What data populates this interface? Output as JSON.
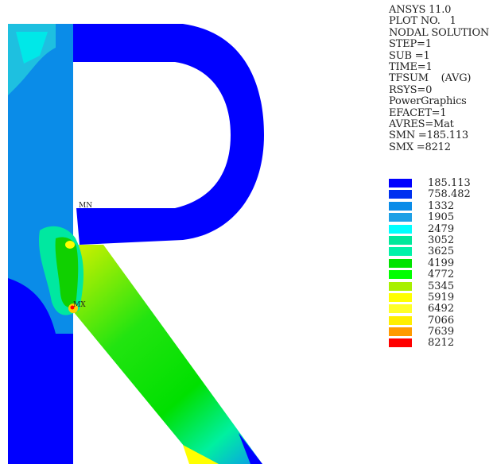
{
  "info_lines": [
    "ANSYS 11.0",
    "PLOT NO.   1",
    "NODAL SOLUTION",
    "STEP=1",
    "SUB =1",
    "TIME=1",
    "TFSUM    (AVG)",
    "RSYS=0",
    "PowerGraphics",
    "EFACET=1",
    "AVRES=Mat",
    "SMN =185.113",
    "SMX =8212"
  ],
  "legend": [
    {
      "value": "185.113",
      "color": "#0000ff"
    },
    {
      "value": "758.482",
      "color": "#0030f0"
    },
    {
      "value": "1332",
      "color": "#0a8ce8"
    },
    {
      "value": "1905",
      "color": "#1ea0e6"
    },
    {
      "value": "2479",
      "color": "#00ffff"
    },
    {
      "value": "3052",
      "color": "#00e89a"
    },
    {
      "value": "3625",
      "color": "#00f2a8"
    },
    {
      "value": "4199",
      "color": "#00e400"
    },
    {
      "value": "4772",
      "color": "#00ff00"
    },
    {
      "value": "5345",
      "color": "#a8f000"
    },
    {
      "value": "5919",
      "color": "#ffff00"
    },
    {
      "value": "6492",
      "color": "#ffff28"
    },
    {
      "value": "7066",
      "color": "#ffee00"
    },
    {
      "value": "7639",
      "color": "#ff9a00"
    },
    {
      "value": "8212",
      "color": "#ff0000"
    }
  ],
  "markers": {
    "min_label": "MN",
    "max_label": "MX"
  }
}
